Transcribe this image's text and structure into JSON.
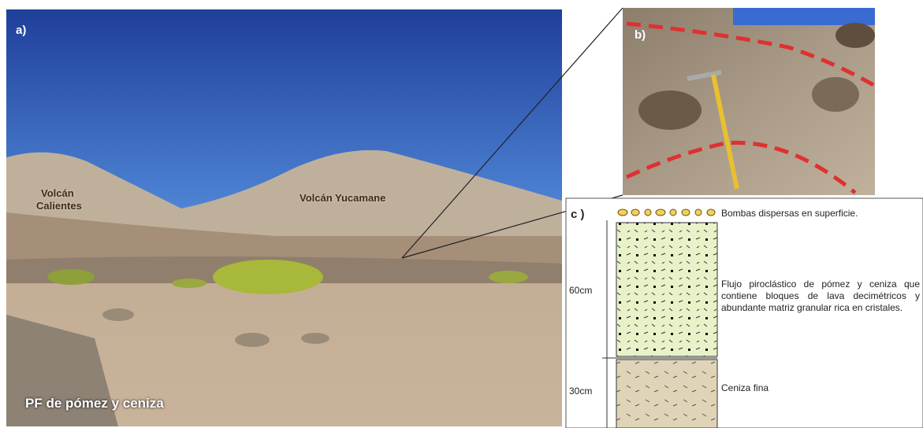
{
  "panel_a": {
    "label": "a)",
    "annotations": {
      "calientes": [
        "Volcán",
        "Calientes"
      ],
      "yucamane": "Volcán Yucamane",
      "deposit": "PF de pómez y ceniza"
    }
  },
  "panel_b": {
    "label": "b)"
  },
  "panel_c": {
    "label": "c )",
    "layers": [
      {
        "description": "Bombas dispersas en superficie."
      },
      {
        "thickness": "60cm",
        "description": "Flujo piroclástico de pómez y ceniza que contiene bloques de lava decimétricos y abundante matriz granular rica en cristales."
      },
      {
        "thickness": "30cm",
        "description": "Ceniza fina"
      }
    ]
  }
}
